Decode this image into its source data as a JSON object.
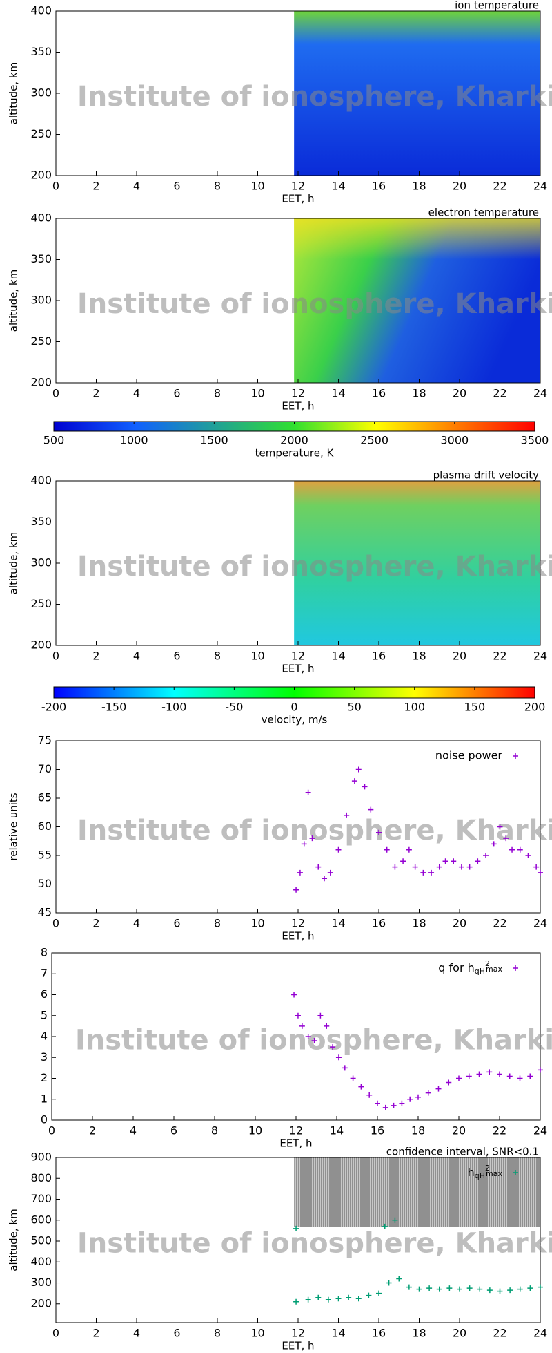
{
  "watermark": "Institute of ionosphere, Kharkiv",
  "chart_data": [
    {
      "type": "heatmap",
      "title": "ion temperature",
      "xlabel": "EET, h",
      "ylabel": "altitude, km",
      "xlim": [
        0,
        24
      ],
      "xticks": [
        0,
        2,
        4,
        6,
        8,
        10,
        12,
        14,
        16,
        18,
        20,
        22,
        24
      ],
      "ylim": [
        200,
        400
      ],
      "yticks": [
        200,
        250,
        300,
        350,
        400
      ]
    },
    {
      "type": "heatmap",
      "title": "electron temperature",
      "xlabel": "EET, h",
      "ylabel": "altitude, km",
      "xlim": [
        0,
        24
      ],
      "xticks": [
        0,
        2,
        4,
        6,
        8,
        10,
        12,
        14,
        16,
        18,
        20,
        22,
        24
      ],
      "ylim": [
        200,
        400
      ],
      "yticks": [
        200,
        250,
        300,
        350,
        400
      ]
    },
    {
      "type": "colorbar",
      "xlabel": "temperature, K",
      "xlim": [
        500,
        3500
      ],
      "xticks": [
        500,
        1000,
        1500,
        2000,
        2500,
        3000,
        3500
      ]
    },
    {
      "type": "heatmap",
      "title": "plasma drift velocity",
      "xlabel": "EET, h",
      "ylabel": "altitude, km",
      "xlim": [
        0,
        24
      ],
      "xticks": [
        0,
        2,
        4,
        6,
        8,
        10,
        12,
        14,
        16,
        18,
        20,
        22,
        24
      ],
      "ylim": [
        200,
        400
      ],
      "yticks": [
        200,
        250,
        300,
        350,
        400
      ]
    },
    {
      "type": "colorbar",
      "xlabel": "velocity, m/s",
      "xlim": [
        -200,
        200
      ],
      "xticks": [
        -200,
        -150,
        -100,
        -50,
        0,
        50,
        100,
        150,
        200
      ]
    },
    {
      "type": "scatter",
      "xlabel": "EET, h",
      "ylabel": "relative units",
      "xlim": [
        0,
        24
      ],
      "xticks": [
        0,
        2,
        4,
        6,
        8,
        10,
        12,
        14,
        16,
        18,
        20,
        22,
        24
      ],
      "ylim": [
        45,
        75
      ],
      "yticks": [
        45,
        50,
        55,
        60,
        65,
        70,
        75
      ],
      "series": [
        {
          "name": "noise power",
          "color": "#9400d3",
          "x": [
            11.9,
            12.1,
            12.3,
            12.5,
            12.7,
            13.0,
            13.3,
            13.6,
            14.0,
            14.4,
            14.8,
            15.0,
            15.3,
            15.6,
            16.0,
            16.4,
            16.8,
            17.2,
            17.5,
            17.8,
            18.2,
            18.6,
            19.0,
            19.3,
            19.7,
            20.1,
            20.5,
            20.9,
            21.3,
            21.7,
            22.0,
            22.3,
            22.6,
            23.0,
            23.4,
            23.8,
            24.0
          ],
          "values": [
            49,
            52,
            57,
            66,
            58,
            53,
            51,
            52,
            56,
            62,
            68,
            70,
            67,
            63,
            59,
            56,
            53,
            54,
            56,
            53,
            52,
            52,
            53,
            54,
            54,
            53,
            53,
            54,
            55,
            57,
            60,
            58,
            56,
            56,
            55,
            53,
            52
          ]
        }
      ]
    },
    {
      "type": "scatter",
      "xlabel": "EET, h",
      "xlim": [
        0,
        24
      ],
      "xticks": [
        0,
        2,
        4,
        6,
        8,
        10,
        12,
        14,
        16,
        18,
        20,
        22,
        24
      ],
      "ylim": [
        0,
        8
      ],
      "yticks": [
        0,
        1,
        2,
        3,
        4,
        5,
        6,
        7,
        8
      ],
      "series": [
        {
          "name_parts": [
            "q for h",
            "qH",
            "2",
            "max"
          ],
          "color": "#9400d3",
          "x": [
            11.9,
            12.1,
            12.3,
            12.6,
            12.9,
            13.2,
            13.5,
            13.8,
            14.1,
            14.4,
            14.8,
            15.2,
            15.6,
            16.0,
            16.4,
            16.8,
            17.2,
            17.6,
            18.0,
            18.5,
            19.0,
            19.5,
            20.0,
            20.5,
            21.0,
            21.5,
            22.0,
            22.5,
            23.0,
            23.5,
            24.0
          ],
          "values": [
            6,
            5,
            4.5,
            4,
            3.8,
            5,
            4.5,
            3.5,
            3,
            2.5,
            2,
            1.6,
            1.2,
            0.8,
            0.6,
            0.7,
            0.8,
            1.0,
            1.1,
            1.3,
            1.5,
            1.8,
            2.0,
            2.1,
            2.2,
            2.3,
            2.2,
            2.1,
            2.0,
            2.1,
            2.4
          ]
        }
      ]
    },
    {
      "type": "scatter",
      "title": "confidence interval, SNR<0.1",
      "xlabel": "EET, h",
      "ylabel": "altitude, km",
      "xlim": [
        0,
        24
      ],
      "xticks": [
        0,
        2,
        4,
        6,
        8,
        10,
        12,
        14,
        16,
        18,
        20,
        22,
        24
      ],
      "ylim": [
        110,
        900
      ],
      "yticks": [
        200,
        300,
        400,
        500,
        600,
        700,
        800,
        900
      ],
      "series": [
        {
          "name_parts": [
            "h",
            "qH",
            "2",
            "max"
          ],
          "color": "#009e73",
          "x": [
            11.9,
            12.5,
            13.0,
            13.5,
            14.0,
            14.5,
            15.0,
            15.5,
            16.0,
            16.5,
            17.0,
            17.5,
            18.0,
            18.5,
            19.0,
            19.5,
            20.0,
            20.5,
            21.0,
            21.5,
            22.0,
            22.5,
            23.0,
            23.5,
            24.0,
            11.9,
            16.3,
            16.8
          ],
          "values": [
            210,
            220,
            230,
            220,
            225,
            230,
            225,
            240,
            250,
            300,
            320,
            280,
            270,
            275,
            270,
            275,
            270,
            275,
            270,
            265,
            260,
            265,
            270,
            275,
            280,
            560,
            570,
            600
          ]
        }
      ]
    }
  ]
}
